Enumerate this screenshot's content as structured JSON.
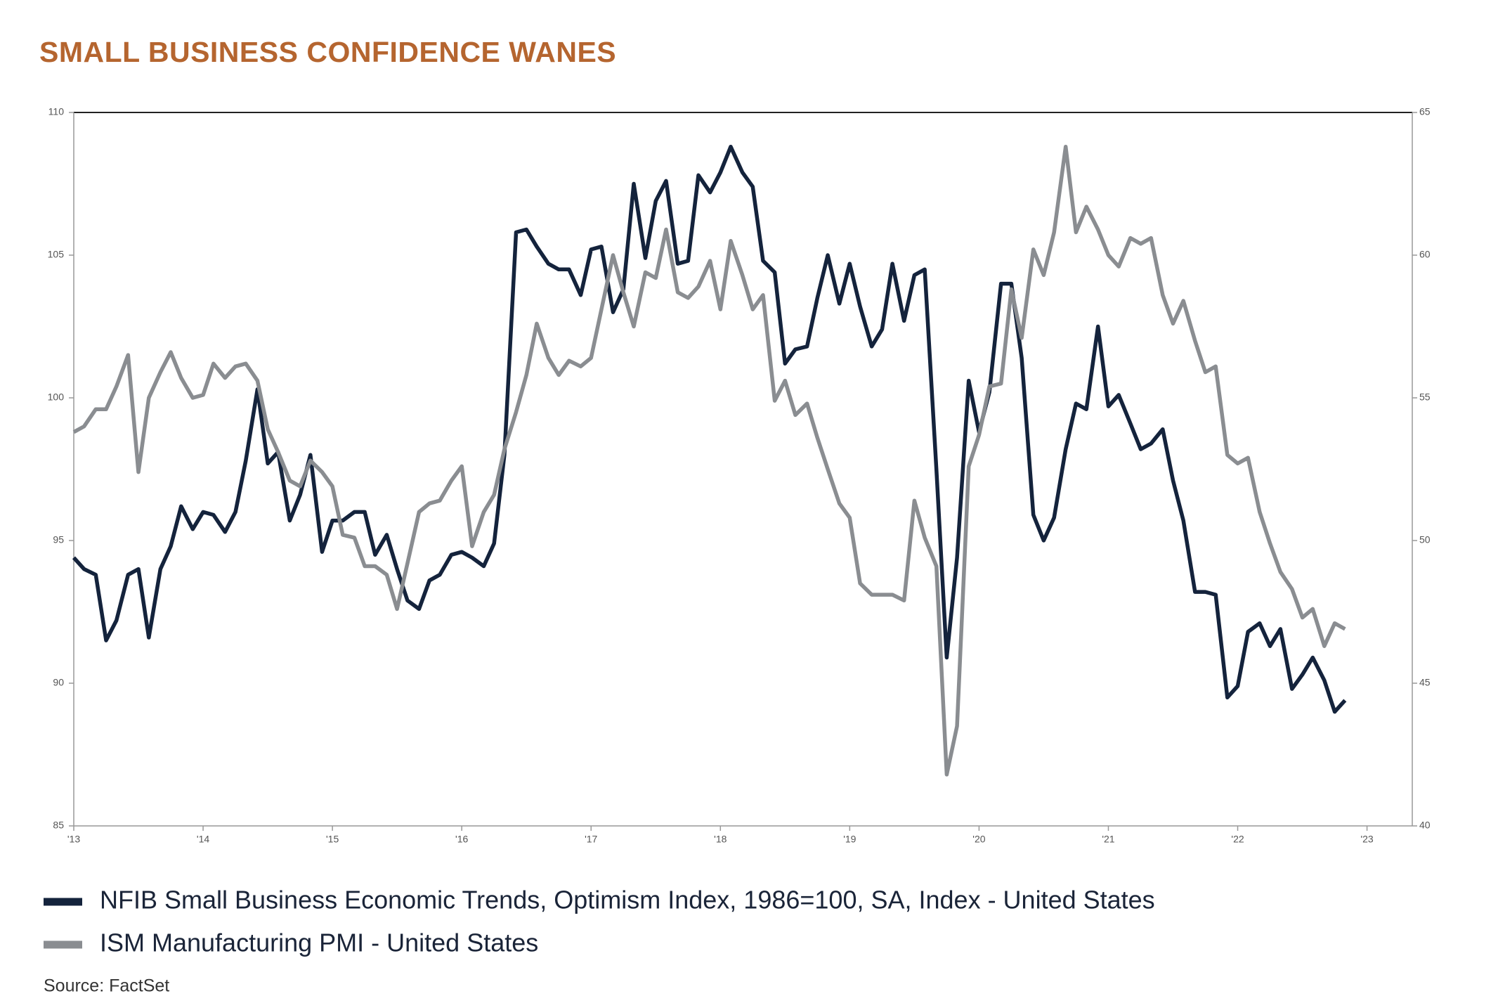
{
  "chart_data": {
    "type": "line",
    "title": "SMALL BUSINESS CONFIDENCE WANES",
    "source": "Source: FactSet",
    "x": [
      2013.0,
      2013.08,
      2013.17,
      2013.25,
      2013.33,
      2013.42,
      2013.5,
      2013.58,
      2013.67,
      2013.75,
      2013.83,
      2013.92,
      2014.0,
      2014.08,
      2014.17,
      2014.25,
      2014.33,
      2014.42,
      2014.5,
      2014.58,
      2014.67,
      2014.75,
      2014.83,
      2014.92,
      2015.0,
      2015.08,
      2015.17,
      2015.25,
      2015.33,
      2015.42,
      2015.5,
      2015.58,
      2015.67,
      2015.75,
      2015.83,
      2015.92,
      2016.0,
      2016.08,
      2016.17,
      2016.25,
      2016.33,
      2016.42,
      2016.5,
      2016.58,
      2016.67,
      2016.75,
      2016.83,
      2016.92,
      2017.0,
      2017.08,
      2017.17,
      2017.25,
      2017.33,
      2017.42,
      2017.5,
      2017.58,
      2017.67,
      2017.75,
      2017.83,
      2017.92,
      2018.0,
      2018.08,
      2018.17,
      2018.25,
      2018.33,
      2018.42,
      2018.5,
      2018.58,
      2018.67,
      2018.75,
      2018.83,
      2018.92,
      2019.0,
      2019.08,
      2019.17,
      2019.25,
      2019.33,
      2019.42,
      2019.5,
      2019.58,
      2019.67,
      2019.75,
      2019.83,
      2019.92,
      2020.0,
      2020.08,
      2020.17,
      2020.25,
      2020.33,
      2020.42,
      2020.5,
      2020.58,
      2020.67,
      2020.75,
      2020.83,
      2020.92,
      2021.0,
      2021.08,
      2021.17,
      2021.25,
      2021.33,
      2021.42,
      2021.5,
      2021.58,
      2021.67,
      2021.75,
      2021.83,
      2021.92,
      2022.0,
      2022.08,
      2022.17,
      2022.25,
      2022.33,
      2022.42,
      2022.5,
      2022.58,
      2022.67,
      2022.75,
      2022.83
    ],
    "series": [
      {
        "name": "NFIB Small Business Economic Trends, Optimism Index, 1986=100, SA, Index - United States",
        "color": "#14233c",
        "axis": "y",
        "values": [
          94.4,
          94.0,
          93.8,
          91.5,
          92.2,
          93.8,
          94.0,
          91.6,
          94.0,
          94.8,
          96.2,
          95.4,
          96.0,
          95.9,
          95.3,
          96.0,
          97.8,
          100.3,
          97.7,
          98.1,
          95.7,
          96.6,
          98.0,
          94.6,
          95.7,
          95.7,
          96.0,
          96.0,
          94.5,
          95.2,
          94.0,
          92.9,
          92.6,
          93.6,
          93.8,
          94.5,
          94.6,
          94.4,
          94.1,
          94.9,
          98.0,
          105.8,
          105.9,
          105.3,
          104.7,
          104.5,
          104.5,
          103.6,
          105.2,
          105.3,
          103.0,
          103.8,
          107.5,
          104.9,
          106.9,
          107.6,
          104.7,
          104.8,
          107.8,
          107.2,
          107.9,
          108.8,
          107.9,
          107.4,
          104.8,
          104.4,
          101.2,
          101.7,
          101.8,
          103.5,
          105.0,
          103.3,
          104.7,
          103.2,
          101.8,
          102.4,
          104.7,
          102.7,
          104.3,
          104.5,
          97.5,
          90.9,
          94.4,
          100.6,
          98.8,
          100.2,
          104.0,
          104.0,
          101.4,
          95.9,
          95.0,
          95.8,
          98.2,
          99.8,
          99.6,
          102.5,
          99.7,
          100.1,
          99.1,
          98.2,
          98.4,
          98.9,
          97.1,
          95.7,
          93.2,
          93.2,
          93.1,
          89.5,
          89.9,
          91.8,
          92.1,
          91.3,
          91.9,
          89.8,
          90.3,
          90.9,
          90.1,
          89.0,
          89.4
        ]
      },
      {
        "name": "ISM Manufacturing PMI - United States",
        "color": "#8a8d91",
        "axis": "y2",
        "values": [
          53.8,
          54.0,
          54.6,
          54.6,
          55.4,
          56.5,
          52.4,
          55.0,
          55.9,
          56.6,
          55.7,
          55.0,
          55.1,
          56.2,
          55.7,
          56.1,
          56.2,
          55.6,
          53.9,
          53.1,
          52.1,
          51.9,
          52.8,
          52.4,
          51.9,
          50.2,
          50.1,
          49.1,
          49.1,
          48.8,
          47.6,
          49.2,
          51.0,
          51.3,
          51.4,
          52.1,
          52.6,
          49.8,
          51.0,
          51.6,
          53.2,
          54.5,
          55.8,
          57.6,
          56.4,
          55.8,
          56.3,
          56.1,
          56.4,
          58.1,
          60.0,
          58.7,
          57.5,
          59.4,
          59.2,
          60.9,
          58.7,
          58.5,
          58.9,
          59.8,
          58.1,
          60.5,
          59.3,
          58.1,
          58.6,
          54.9,
          55.6,
          54.4,
          54.8,
          53.6,
          52.5,
          51.3,
          50.8,
          48.5,
          48.1,
          48.1,
          48.1,
          47.9,
          51.4,
          50.1,
          49.1,
          41.8,
          43.5,
          52.6,
          53.7,
          55.4,
          55.5,
          58.8,
          57.1,
          60.2,
          59.3,
          60.8,
          63.8,
          60.8,
          61.7,
          60.9,
          60.0,
          59.6,
          60.6,
          60.4,
          60.6,
          58.6,
          57.6,
          58.4,
          57.0,
          55.9,
          56.1,
          53.0,
          52.7,
          52.9,
          51.0,
          49.9,
          48.9,
          48.3,
          47.3,
          47.6,
          46.3,
          47.1,
          46.9
        ]
      }
    ],
    "xlim": [
      2013,
      2023.35
    ],
    "xticks": [
      {
        "value": 2013,
        "label": "'13"
      },
      {
        "value": 2014,
        "label": "'14"
      },
      {
        "value": 2015,
        "label": "'15"
      },
      {
        "value": 2016,
        "label": "'16"
      },
      {
        "value": 2017,
        "label": "'17"
      },
      {
        "value": 2018,
        "label": "'18"
      },
      {
        "value": 2019,
        "label": "'19"
      },
      {
        "value": 2020,
        "label": "'20"
      },
      {
        "value": 2021,
        "label": "'21"
      },
      {
        "value": 2022,
        "label": "'22"
      },
      {
        "value": 2023,
        "label": "'23"
      }
    ],
    "ylim": [
      85,
      110
    ],
    "yticks": [
      85,
      90,
      95,
      100,
      105,
      110
    ],
    "y2lim": [
      40,
      65
    ],
    "y2ticks": [
      40,
      45,
      50,
      55,
      60,
      65
    ],
    "grid": false
  }
}
